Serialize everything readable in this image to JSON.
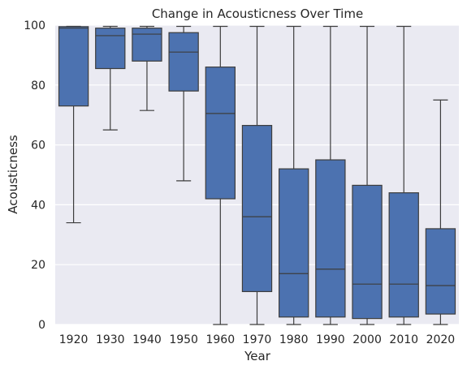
{
  "chart_data": {
    "type": "box",
    "title": "Change in Acousticness Over Time",
    "xlabel": "Year",
    "ylabel": "Acousticness",
    "ylim": [
      0,
      100
    ],
    "yticks": [
      0,
      20,
      40,
      60,
      80,
      100
    ],
    "grid": true,
    "categories": [
      "1920",
      "1930",
      "1940",
      "1950",
      "1960",
      "1970",
      "1980",
      "1990",
      "2000",
      "2010",
      "2020"
    ],
    "boxes": [
      {
        "category": "1920",
        "whisker_low": 34,
        "q1": 73,
        "median": 99,
        "q3": 99.5,
        "whisker_high": 99.6
      },
      {
        "category": "1930",
        "whisker_low": 65,
        "q1": 85.5,
        "median": 96.5,
        "q3": 99,
        "whisker_high": 99.6
      },
      {
        "category": "1940",
        "whisker_low": 71.5,
        "q1": 88,
        "median": 97,
        "q3": 99,
        "whisker_high": 99.6
      },
      {
        "category": "1950",
        "whisker_low": 48,
        "q1": 78,
        "median": 91,
        "q3": 97.5,
        "whisker_high": 99.6
      },
      {
        "category": "1960",
        "whisker_low": 0,
        "q1": 42,
        "median": 70.5,
        "q3": 86,
        "whisker_high": 99.6
      },
      {
        "category": "1970",
        "whisker_low": 0,
        "q1": 11,
        "median": 36,
        "q3": 66.5,
        "whisker_high": 99.6
      },
      {
        "category": "1980",
        "whisker_low": 0,
        "q1": 2.5,
        "median": 17,
        "q3": 52,
        "whisker_high": 99.6
      },
      {
        "category": "1990",
        "whisker_low": 0,
        "q1": 2.5,
        "median": 18.5,
        "q3": 55,
        "whisker_high": 99.6
      },
      {
        "category": "2000",
        "whisker_low": 0,
        "q1": 2,
        "median": 13.5,
        "q3": 46.5,
        "whisker_high": 99.6
      },
      {
        "category": "2010",
        "whisker_low": 0,
        "q1": 2.5,
        "median": 13.5,
        "q3": 44,
        "whisker_high": 99.6
      },
      {
        "category": "2020",
        "whisker_low": 0,
        "q1": 3.5,
        "median": 13,
        "q3": 32,
        "whisker_high": 75
      }
    ],
    "colors": {
      "box_fill": "#4C72B0",
      "line": "#3d3d3d",
      "plot_bg": "#EAEAF2",
      "grid": "#ffffff"
    }
  }
}
